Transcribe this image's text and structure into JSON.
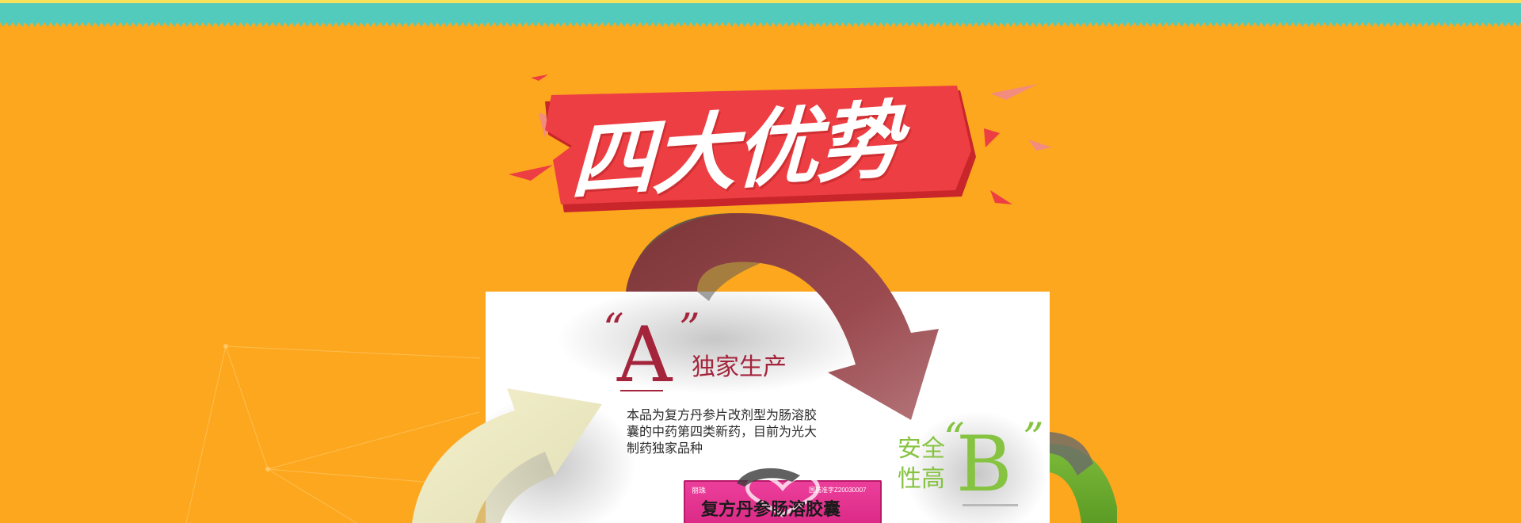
{
  "page": {
    "background_color": "#fda71e",
    "band_color": "#52cbbd"
  },
  "banner": {
    "title": "四大优势",
    "color": "#ed3e43"
  },
  "advantage_a": {
    "quote_left": "“",
    "letter": "A",
    "quote_right": "”",
    "title": "独家生产",
    "description": "本品为复方丹参片改剂型为肠溶胶囊的中药第四类新药，目前为光大制药独家品种",
    "color": "#a4243b"
  },
  "advantage_b": {
    "title": "安全性高",
    "quote_left": "“",
    "letter": "B",
    "quote_right": "”",
    "color": "#86c341"
  },
  "product": {
    "brand": "丽珠",
    "approval": "国药准字Z20030007",
    "name": "复方丹参肠溶胶囊"
  },
  "icons": {
    "arrow_red": "curved-arrow-red",
    "arrow_cream": "curved-arrow-cream",
    "arrow_green": "curved-arrow-green"
  }
}
